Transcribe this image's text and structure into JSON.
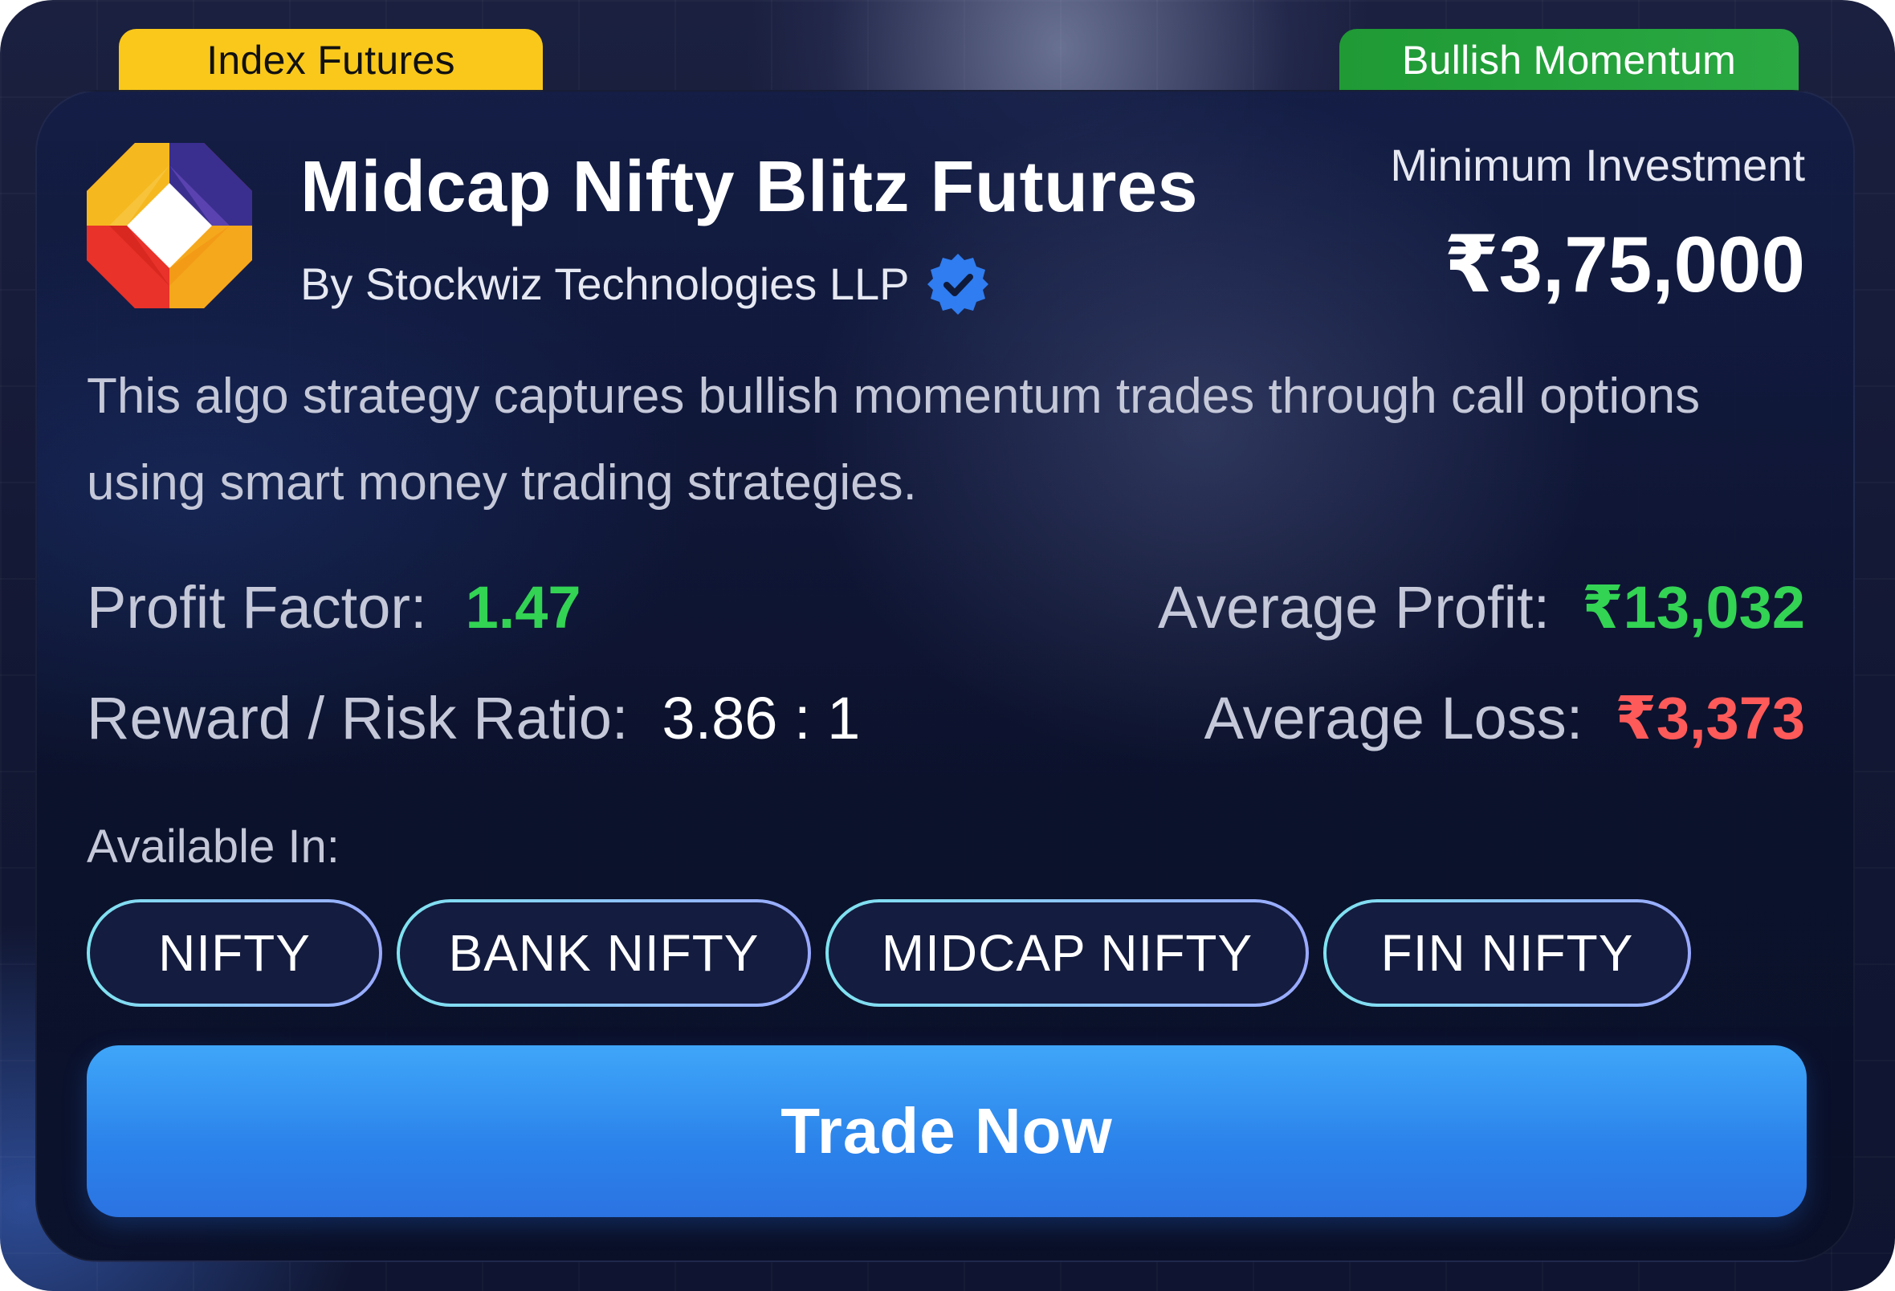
{
  "tags": {
    "category": "Index Futures",
    "trend": "Bullish Momentum"
  },
  "strategy": {
    "logo_icon": "octagon-logo-icon",
    "title": "Midcap Nifty Blitz Futures",
    "byline": "By Stockwiz Technologies LLP",
    "verified_icon": "verified-badge-icon"
  },
  "investment": {
    "label": "Minimum Investment",
    "value": "₹3,75,000"
  },
  "description": "This algo strategy captures bullish momentum trades through call options using smart money trading strategies.",
  "stats": {
    "profit_factor": {
      "label": "Profit Factor:",
      "value": "1.47"
    },
    "reward_risk": {
      "label": "Reward / Risk Ratio:",
      "value": "3.86 : 1"
    },
    "avg_profit": {
      "label": "Average Profit:",
      "value": "₹13,032"
    },
    "avg_loss": {
      "label": "Average Loss:",
      "value": "₹3,373"
    }
  },
  "available": {
    "label": "Available In:",
    "items": [
      "NIFTY",
      "BANK NIFTY",
      "MIDCAP NIFTY",
      "FIN NIFTY"
    ]
  },
  "cta": {
    "label": "Trade Now"
  },
  "colors": {
    "tag_yellow": "#f9c81a",
    "tag_green": "#1f9a35",
    "positive": "#33d354",
    "negative": "#ff5a5a",
    "button_blue": "#2b82ea"
  }
}
